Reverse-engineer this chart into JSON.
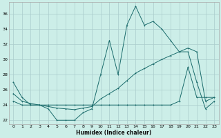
{
  "xlabel": "Humidex (Indice chaleur)",
  "bg_color": "#cceee8",
  "grid_color": "#aacccc",
  "line_color": "#1a6b6b",
  "xlim": [
    -0.5,
    23.5
  ],
  "ylim": [
    21.5,
    37.5
  ],
  "xticks": [
    0,
    1,
    2,
    3,
    4,
    5,
    6,
    7,
    8,
    9,
    10,
    11,
    12,
    13,
    14,
    15,
    16,
    17,
    18,
    19,
    20,
    21,
    22,
    23
  ],
  "yticks": [
    22,
    24,
    26,
    28,
    30,
    32,
    34,
    36
  ],
  "line1_x": [
    0,
    1,
    2,
    3,
    4,
    5,
    6,
    7,
    8,
    9,
    10,
    11,
    12,
    13,
    14,
    15,
    16,
    17,
    18,
    19,
    20,
    21,
    22,
    23
  ],
  "line1_y": [
    27,
    25,
    24,
    24,
    23.5,
    22,
    22,
    22,
    23,
    23.5,
    28,
    32.5,
    28,
    34.5,
    37,
    34.5,
    35,
    34,
    32.5,
    31,
    31,
    27,
    23.5,
    24.5
  ],
  "line2_x": [
    0,
    1,
    2,
    3,
    4,
    5,
    6,
    7,
    8,
    9,
    10,
    11,
    12,
    13,
    14,
    15,
    16,
    17,
    18,
    19,
    20,
    21,
    22,
    23
  ],
  "line2_y": [
    25.5,
    24.5,
    24.2,
    24.0,
    23.8,
    23.6,
    23.5,
    23.4,
    23.6,
    23.8,
    24.8,
    25.5,
    26.2,
    27.2,
    28.2,
    28.8,
    29.4,
    30.0,
    30.5,
    31.0,
    31.5,
    31.0,
    24.5,
    25.0
  ],
  "line3_x": [
    0,
    1,
    2,
    3,
    4,
    5,
    6,
    7,
    8,
    9,
    10,
    11,
    12,
    13,
    14,
    15,
    16,
    17,
    18,
    19,
    20,
    21,
    22,
    23
  ],
  "line3_y": [
    24.5,
    24.0,
    24.0,
    24.0,
    24.0,
    24.0,
    24.0,
    24.0,
    24.0,
    24.0,
    24.0,
    24.0,
    24.0,
    24.0,
    24.0,
    24.0,
    24.0,
    24.0,
    24.0,
    24.5,
    29.0,
    25.0,
    25.0,
    25.0
  ]
}
